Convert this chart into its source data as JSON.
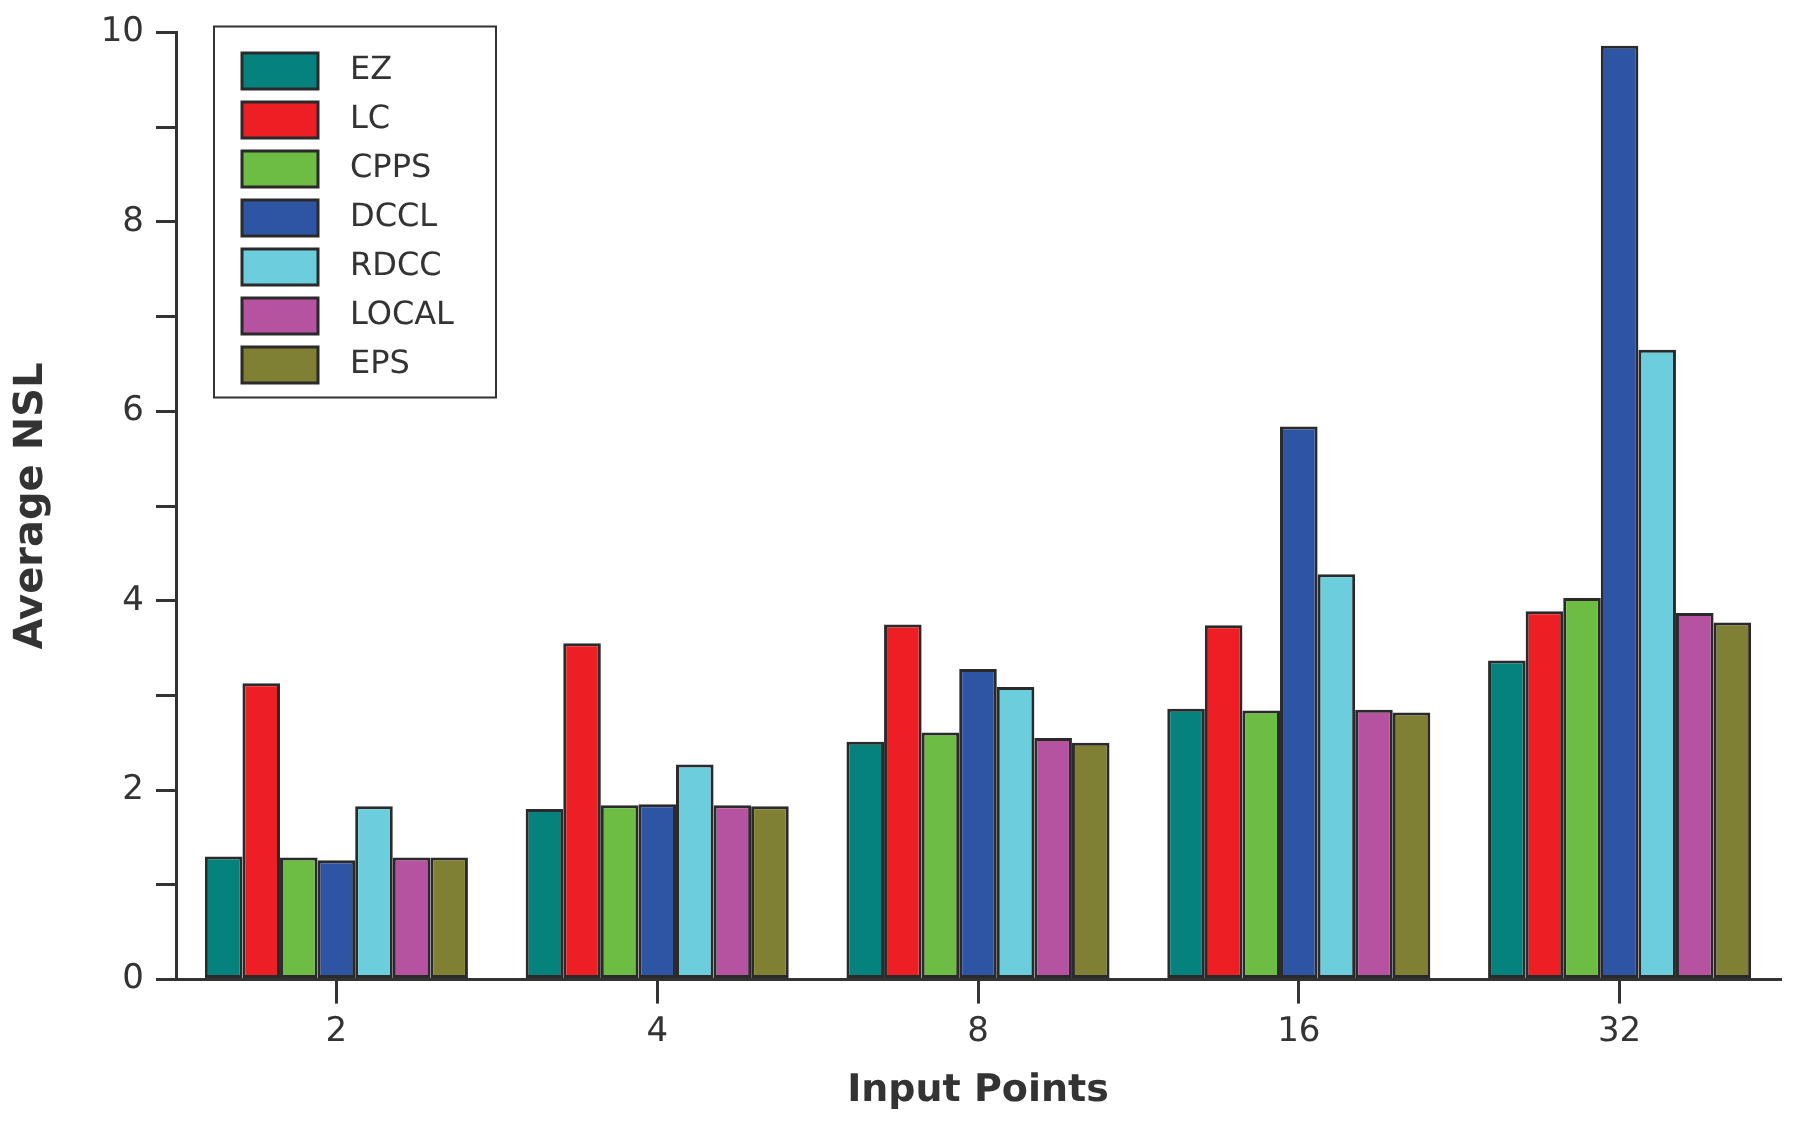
{
  "chart_data": {
    "type": "bar",
    "xlabel": "Input Points",
    "ylabel": "Average NSL",
    "categories": [
      "2",
      "4",
      "8",
      "16",
      "32"
    ],
    "series": [
      {
        "name": "EZ",
        "color": "#05827e",
        "values": [
          1.3,
          1.8,
          2.51,
          2.86,
          3.37
        ]
      },
      {
        "name": "LC",
        "color": "#ed1f24",
        "values": [
          3.13,
          3.55,
          3.75,
          3.74,
          3.89
        ]
      },
      {
        "name": "CPPS",
        "color": "#6dbd45",
        "values": [
          1.29,
          1.84,
          2.61,
          2.84,
          4.03
        ]
      },
      {
        "name": "DCCL",
        "color": "#2e54a4",
        "values": [
          1.26,
          1.85,
          3.28,
          5.84,
          9.86
        ]
      },
      {
        "name": "RDCC",
        "color": "#6ccddc",
        "values": [
          1.83,
          2.27,
          3.09,
          4.28,
          6.65
        ]
      },
      {
        "name": "LOCAL",
        "color": "#b653a0",
        "values": [
          1.29,
          1.84,
          2.55,
          2.85,
          3.87
        ]
      },
      {
        "name": "EPS",
        "color": "#808034",
        "values": [
          1.29,
          1.83,
          2.5,
          2.82,
          3.77
        ]
      }
    ],
    "ylim": [
      0,
      10
    ],
    "yticks": [
      0,
      {
        "value": 1,
        "label": null
      },
      2,
      {
        "value": 3,
        "label": null
      },
      4,
      {
        "value": 5,
        "label": null
      },
      6,
      {
        "value": 7,
        "label": null
      },
      8,
      {
        "value": 9,
        "label": null
      },
      10
    ],
    "grid": false,
    "legend": "top left"
  }
}
